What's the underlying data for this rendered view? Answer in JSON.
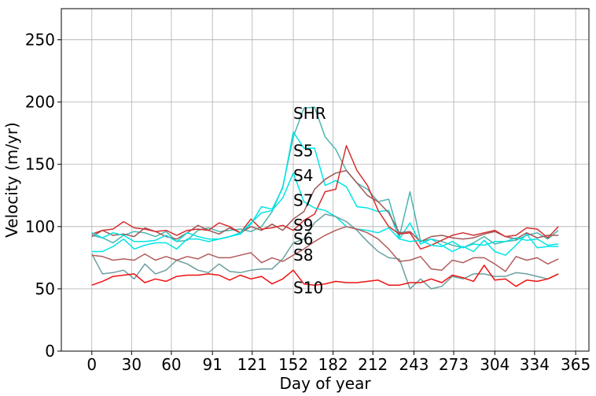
{
  "chart_data": {
    "type": "line",
    "title": "",
    "xlabel": "Day of year",
    "ylabel": "Velocity (m/yr)",
    "xlim": [
      -23,
      375
    ],
    "ylim": [
      0,
      275
    ],
    "grid": true,
    "xticks": [
      0,
      30,
      60,
      91,
      121,
      152,
      182,
      212,
      243,
      273,
      304,
      334,
      365
    ],
    "xtick_labels": [
      "0",
      "30",
      "60",
      "91",
      "121",
      "152",
      "182",
      "212",
      "243",
      "273",
      "304",
      "334",
      "365"
    ],
    "yticks": [
      0,
      50,
      100,
      150,
      200,
      250
    ],
    "ytick_labels": [
      "0",
      "50",
      "100",
      "150",
      "200",
      "250"
    ],
    "x": [
      0,
      8,
      16,
      24,
      32,
      40,
      48,
      56,
      64,
      72,
      80,
      88,
      96,
      104,
      112,
      120,
      128,
      136,
      144,
      152,
      160,
      168,
      176,
      184,
      192,
      200,
      208,
      216,
      224,
      232,
      240,
      248,
      256,
      264,
      272,
      280,
      288,
      296,
      304,
      312,
      320,
      328,
      336,
      344,
      352
    ],
    "series": [
      {
        "name": "SHR",
        "color": "#4bb5b0",
        "label_x": 152,
        "label_y": 191,
        "values": [
          93,
          91,
          87,
          93,
          96,
          95,
          92,
          96,
          88,
          89,
          97,
          99,
          96,
          97,
          98,
          96,
          100,
          112,
          132,
          172,
          195,
          196,
          172,
          162,
          145,
          135,
          130,
          120,
          122,
          92,
          128,
          88,
          90,
          88,
          85,
          83,
          87,
          92,
          86,
          88,
          89,
          93,
          95,
          90,
          97
        ]
      },
      {
        "name": "S5",
        "color": "#00e5e5",
        "label_x": 152,
        "label_y": 161,
        "values": [
          80,
          80,
          84,
          90,
          82,
          85,
          87,
          87,
          82,
          90,
          90,
          88,
          90,
          92,
          94,
          102,
          116,
          114,
          131,
          176,
          163,
          163,
          133,
          137,
          132,
          116,
          115,
          112,
          113,
          90,
          103,
          86,
          90,
          85,
          80,
          84,
          80,
          89,
          80,
          77,
          85,
          94,
          83,
          84,
          84
        ]
      },
      {
        "name": "S4",
        "color": "#9e5a5a",
        "label_x": 152,
        "label_y": 141,
        "values": [
          92,
          97,
          93,
          94,
          92,
          99,
          96,
          92,
          90,
          95,
          101,
          97,
          94,
          99,
          95,
          100,
          97,
          102,
          97,
          106,
          112,
          130,
          138,
          143,
          145,
          135,
          125,
          120,
          111,
          95,
          96,
          88,
          92,
          93,
          91,
          90,
          91,
          94,
          96,
          92,
          90,
          95,
          91,
          93,
          93
        ]
      },
      {
        "name": "S7",
        "color": "#d62f2f",
        "label_x": 152,
        "label_y": 121,
        "values": [
          94,
          97,
          98,
          104,
          99,
          98,
          96,
          97,
          93,
          97,
          98,
          97,
          103,
          100,
          95,
          106,
          98,
          99,
          101,
          97,
          105,
          110,
          128,
          130,
          165,
          145,
          133,
          113,
          100,
          94,
          95,
          82,
          85,
          89,
          93,
          95,
          93,
          95,
          97,
          92,
          93,
          99,
          98,
          91,
          100
        ]
      },
      {
        "name": "S9",
        "color": "#00e5e5",
        "label_x": 152,
        "label_y": 101,
        "values": [
          95,
          91,
          95,
          93,
          88,
          88,
          89,
          93,
          88,
          95,
          92,
          90,
          90,
          92,
          95,
          103,
          111,
          113,
          123,
          143,
          120,
          115,
          113,
          108,
          100,
          98,
          97,
          95,
          99,
          90,
          88,
          89,
          85,
          84,
          88,
          83,
          86,
          85,
          88,
          88,
          91,
          89,
          90,
          85,
          86
        ]
      },
      {
        "name": "S6",
        "color": "#6b9f9f",
        "label_x": 152,
        "label_y": 90,
        "values": [
          78,
          62,
          63,
          65,
          58,
          70,
          62,
          65,
          73,
          70,
          65,
          63,
          70,
          64,
          63,
          65,
          66,
          66,
          74,
          87,
          90,
          103,
          110,
          108,
          104,
          97,
          88,
          80,
          75,
          74,
          50,
          58,
          50,
          52,
          60,
          58,
          62,
          62,
          60,
          60,
          63,
          62,
          60,
          58,
          62
        ]
      },
      {
        "name": "S8",
        "color": "#b35c5c",
        "label_x": 152,
        "label_y": 77,
        "values": [
          77,
          76,
          73,
          74,
          73,
          78,
          73,
          76,
          73,
          76,
          74,
          78,
          75,
          75,
          77,
          79,
          71,
          75,
          72,
          77,
          82,
          88,
          93,
          97,
          100,
          98,
          95,
          90,
          82,
          72,
          73,
          76,
          66,
          65,
          73,
          71,
          75,
          75,
          70,
          64,
          76,
          73,
          75,
          70,
          74
        ]
      },
      {
        "name": "S10",
        "color": "#ee1111",
        "label_x": 152,
        "label_y": 51,
        "values": [
          53,
          56,
          60,
          61,
          62,
          55,
          58,
          56,
          60,
          61,
          61,
          62,
          61,
          57,
          61,
          58,
          60,
          54,
          58,
          65,
          54,
          53,
          54,
          56,
          55,
          55,
          56,
          57,
          53,
          53,
          55,
          55,
          58,
          55,
          61,
          59,
          56,
          69,
          57,
          58,
          52,
          57,
          56,
          58,
          62
        ]
      }
    ]
  }
}
